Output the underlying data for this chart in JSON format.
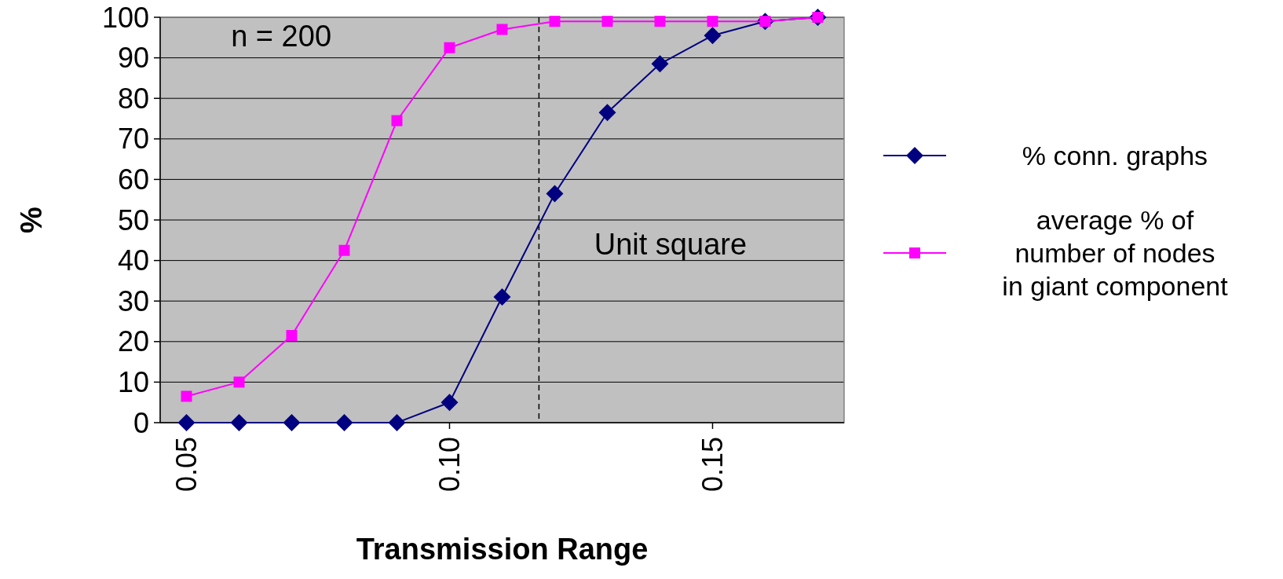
{
  "chart_data": {
    "type": "line",
    "xlabel": "Transmission Range",
    "ylabel": "%",
    "x": [
      0.05,
      0.06,
      0.07,
      0.08,
      0.09,
      0.1,
      0.11,
      0.12,
      0.13,
      0.14,
      0.15,
      0.16,
      0.17
    ],
    "series": [
      {
        "name": "% conn. graphs",
        "color": "#000080",
        "marker": "diamond",
        "values": [
          0,
          0,
          0,
          0,
          0,
          5,
          31,
          56.5,
          76.5,
          88.5,
          95.5,
          99,
          100
        ]
      },
      {
        "name": "average % of number of nodes in giant component",
        "color": "#ff00ff",
        "marker": "square",
        "values": [
          6.5,
          10,
          21.5,
          42.5,
          74.5,
          92.5,
          97,
          99,
          99,
          99,
          99,
          99,
          100
        ]
      }
    ],
    "xlim": [
      0.045,
      0.175
    ],
    "xticks": [
      {
        "value": 0.05,
        "label": "0.05"
      },
      {
        "value": 0.1,
        "label": "0.10"
      },
      {
        "value": 0.15,
        "label": "0.15"
      }
    ],
    "ylim": [
      0,
      100
    ],
    "yticks": [
      0,
      10,
      20,
      30,
      40,
      50,
      60,
      70,
      80,
      90,
      100
    ],
    "grid": "y",
    "legend": "right",
    "line_style": "solid",
    "ref_lines": [
      {
        "axis": "x",
        "value": 0.117,
        "color": "#000000",
        "line_style": "dashed"
      }
    ],
    "annotations": [
      "n = 200",
      "Unit square"
    ]
  }
}
